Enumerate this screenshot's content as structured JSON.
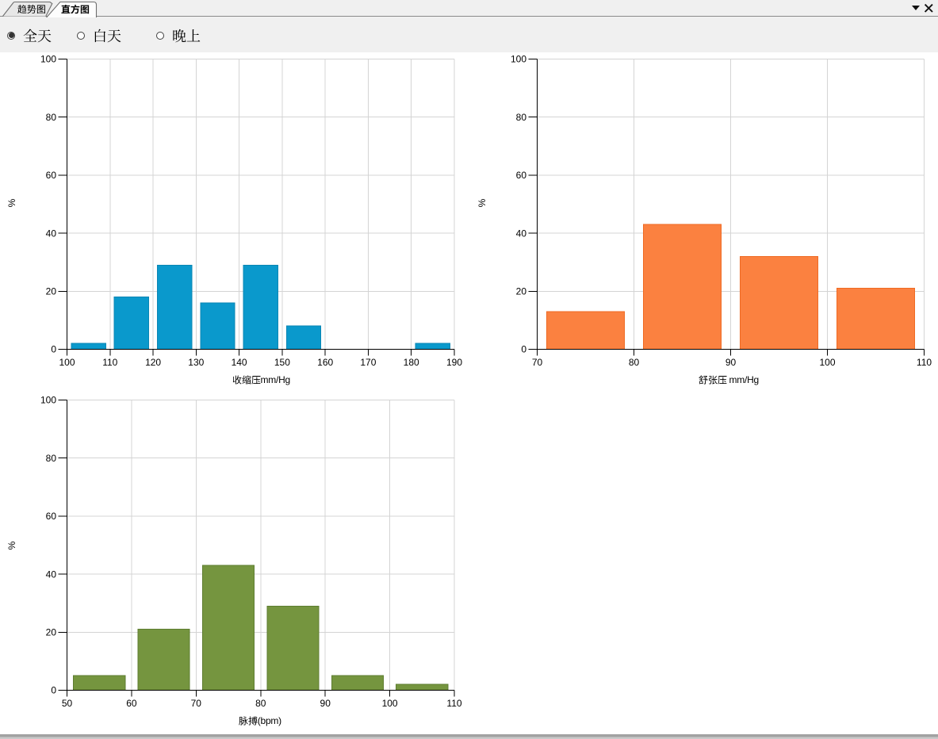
{
  "window": {
    "tabs": [
      {
        "label": "趋势图",
        "active": false
      },
      {
        "label": "直方图",
        "active": true
      }
    ],
    "tab_list_dropdown_icon": "dropdown-triangle",
    "close_icon": "x",
    "colors": {
      "toolbar_bg": "#f0f0f0",
      "content_bg": "#ffffff",
      "tab_active_bg": "#fdfdfd",
      "tab_inactive_bg": "#e7e7e7",
      "tab_border": "#6e6e6e",
      "strip_border": "#8a8a8a",
      "grid_line": "#d4d4d4",
      "axis_line": "#000000"
    }
  },
  "filters": {
    "options": [
      {
        "label": "全天",
        "selected": true
      },
      {
        "label": "白天",
        "selected": false
      },
      {
        "label": "晚上",
        "selected": false
      }
    ]
  },
  "chart_data": [
    {
      "type": "bar",
      "variant": "histogram",
      "title": "",
      "xlabel": "收缩压mm/Hg",
      "xlabel_cjk": "收缩压",
      "xlabel_suffix": "mm/Hg",
      "ylabel": "%",
      "xlim": [
        100,
        190
      ],
      "ylim": [
        0,
        100
      ],
      "x_ticks": [
        100,
        110,
        120,
        130,
        140,
        150,
        160,
        170,
        180,
        190
      ],
      "y_ticks": [
        0,
        20,
        40,
        60,
        80,
        100
      ],
      "bin_edges": [
        100,
        110,
        120,
        130,
        140,
        150,
        160,
        170,
        180,
        190
      ],
      "values": [
        2,
        18,
        29,
        16,
        29,
        8,
        0,
        0,
        2
      ],
      "bar_color": "#0a99cc",
      "bar_border_color": "#0a86b4",
      "grid": true,
      "legend": null
    },
    {
      "type": "bar",
      "variant": "histogram",
      "title": "",
      "xlabel": "舒张压 mm/Hg",
      "xlabel_cjk": "舒张压",
      "xlabel_suffix": "mm/Hg",
      "ylabel": "%",
      "xlim": [
        70,
        110
      ],
      "ylim": [
        0,
        100
      ],
      "x_ticks": [
        70,
        80,
        90,
        100,
        110
      ],
      "y_ticks": [
        0,
        20,
        40,
        60,
        80,
        100
      ],
      "bin_edges": [
        70,
        80,
        90,
        100,
        110
      ],
      "values": [
        13,
        43,
        32,
        21
      ],
      "bar_color": "#fb8140",
      "bar_border_color": "#ef6a23",
      "grid": true,
      "legend": null
    },
    {
      "type": "bar",
      "variant": "histogram",
      "title": "",
      "xlabel": "脉搏(bpm)",
      "xlabel_cjk": "脉搏",
      "xlabel_suffix": "(bpm)",
      "ylabel": "%",
      "xlim": [
        50,
        110
      ],
      "ylim": [
        0,
        100
      ],
      "x_ticks": [
        50,
        60,
        70,
        80,
        90,
        100,
        110
      ],
      "y_ticks": [
        0,
        20,
        40,
        60,
        80,
        100
      ],
      "bin_edges": [
        50,
        60,
        70,
        80,
        90,
        100,
        110
      ],
      "values": [
        5,
        21,
        43,
        29,
        5,
        2
      ],
      "bar_color": "#75953f",
      "bar_border_color": "#5e7d31",
      "grid": true,
      "legend": null
    }
  ]
}
